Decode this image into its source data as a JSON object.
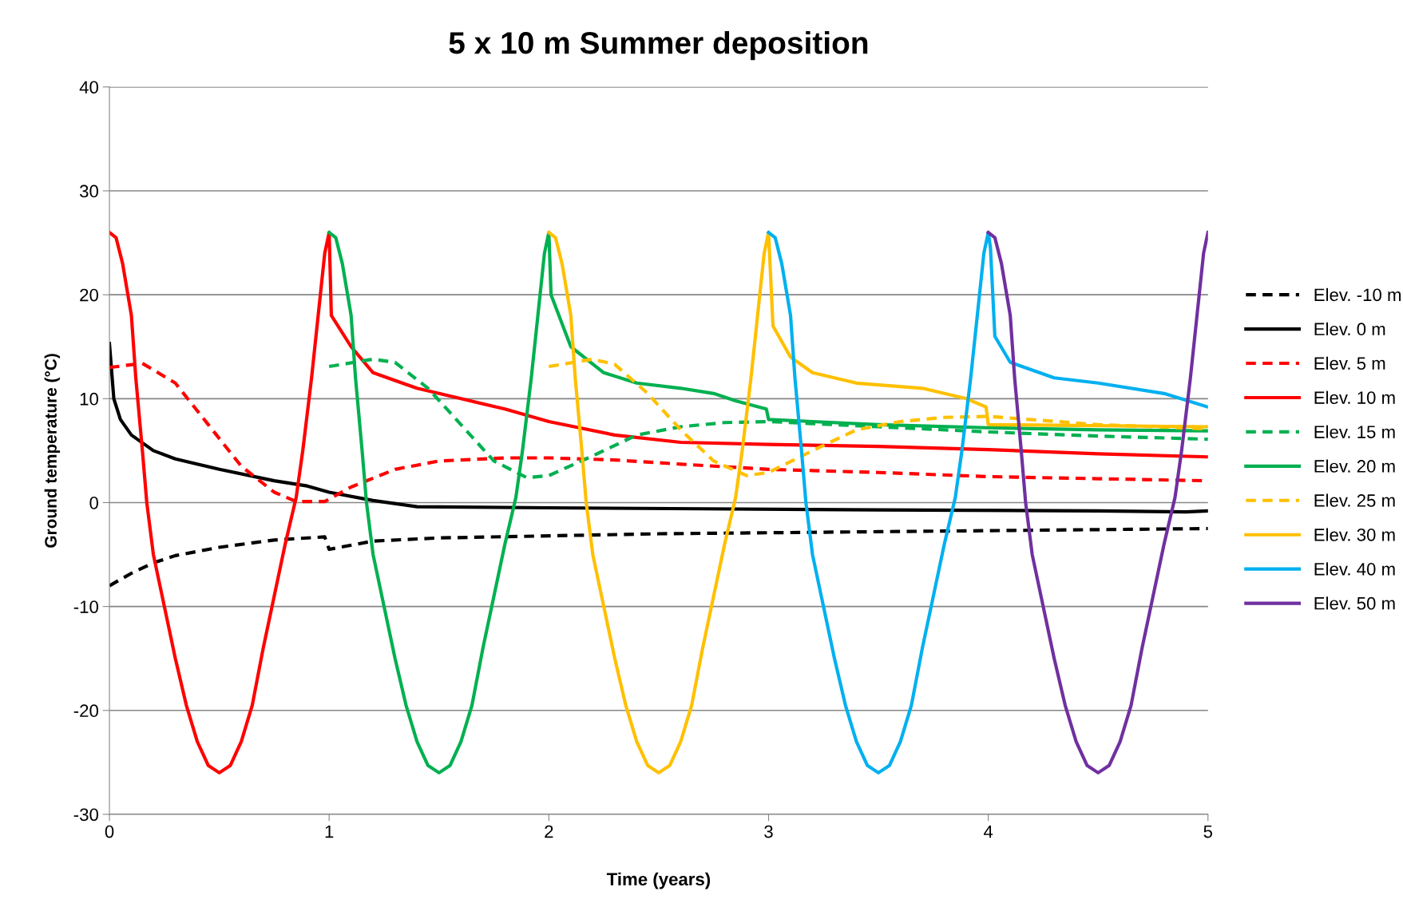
{
  "chart_data": {
    "type": "line",
    "title": "5 x 10 m Summer deposition",
    "xlabel": "Time (years)",
    "ylabel": "Ground temperature (°C)",
    "xlim": [
      0,
      5
    ],
    "ylim": [
      -30,
      40
    ],
    "xticks": [
      0,
      1,
      2,
      3,
      4,
      5
    ],
    "yticks": [
      -30,
      -20,
      -10,
      0,
      10,
      20,
      30,
      40
    ],
    "grid": "y",
    "legend": "right",
    "marker": "none",
    "series": [
      {
        "name": "Elev. -10 m",
        "color": "#000000",
        "line_style": "dashed",
        "x": [
          0,
          0.1,
          0.2,
          0.3,
          0.5,
          0.75,
          0.98,
          1.0,
          1.2,
          1.5,
          2,
          2.5,
          3,
          3.5,
          4,
          4.5,
          5
        ],
        "values": [
          -8,
          -6.8,
          -5.8,
          -5.1,
          -4.3,
          -3.6,
          -3.3,
          -4.5,
          -3.7,
          -3.4,
          -3.2,
          -3.0,
          -2.9,
          -2.8,
          -2.7,
          -2.6,
          -2.5
        ]
      },
      {
        "name": "Elev. 0 m",
        "color": "#000000",
        "line_style": "solid",
        "x": [
          0,
          0.02,
          0.05,
          0.1,
          0.2,
          0.3,
          0.5,
          0.75,
          0.9,
          1.0,
          1.2,
          1.4,
          2,
          2.7,
          3.5,
          4.5,
          4.9,
          5
        ],
        "values": [
          15.3,
          10,
          8,
          6.5,
          5,
          4.2,
          3.2,
          2.1,
          1.6,
          1.0,
          0.2,
          -0.4,
          -0.5,
          -0.6,
          -0.7,
          -0.8,
          -0.9,
          -0.8
        ]
      },
      {
        "name": "Elev. 5 m",
        "color": "#ff0000",
        "line_style": "dashed",
        "x": [
          0,
          0.15,
          0.3,
          0.45,
          0.6,
          0.75,
          0.85,
          0.98,
          1.1,
          1.3,
          1.5,
          1.8,
          2.0,
          2.3,
          2.6,
          3,
          3.5,
          4,
          4.5,
          5
        ],
        "values": [
          13,
          13.4,
          11.5,
          7.5,
          3.5,
          1,
          0.1,
          0.1,
          1.5,
          3.2,
          4.0,
          4.3,
          4.3,
          4.1,
          3.7,
          3.2,
          2.9,
          2.5,
          2.3,
          2.1
        ]
      },
      {
        "name": "Elev. 10 m",
        "color": "#ff0000",
        "line_style": "solid",
        "x": [
          0,
          0.03,
          0.06,
          0.1,
          0.12,
          0.15,
          0.17,
          0.2,
          0.25,
          0.3,
          0.35,
          0.4,
          0.45,
          0.5,
          0.55,
          0.6,
          0.65,
          0.7,
          0.75,
          0.8,
          0.85,
          0.88,
          0.92,
          0.95,
          0.98,
          1.0,
          1.01,
          1.1,
          1.2,
          1.4,
          1.6,
          1.8,
          2.0,
          2.3,
          2.6,
          3,
          3.5,
          4,
          4.5,
          5
        ],
        "values": [
          26,
          25.5,
          23,
          18,
          12,
          5,
          0,
          -5,
          -10,
          -15,
          -19.5,
          -23,
          -25.3,
          -26,
          -25.3,
          -23,
          -19.5,
          -14,
          -9,
          -4,
          0.5,
          5,
          12,
          18,
          24,
          26,
          18,
          15,
          12.5,
          11,
          10,
          9,
          7.8,
          6.5,
          5.8,
          5.6,
          5.4,
          5.1,
          4.7,
          4.4
        ]
      },
      {
        "name": "Elev. 15 m",
        "color": "#00b050",
        "line_style": "dashed",
        "x": [
          1.0,
          1.2,
          1.3,
          1.45,
          1.6,
          1.75,
          1.9,
          2.0,
          2.2,
          2.4,
          2.6,
          2.8,
          3.0,
          3.5,
          4,
          4.5,
          5
        ],
        "values": [
          13.1,
          13.8,
          13.5,
          11,
          7.5,
          4,
          2.4,
          2.6,
          4.5,
          6.5,
          7.3,
          7.7,
          7.8,
          7.3,
          6.8,
          6.4,
          6.1
        ]
      },
      {
        "name": "Elev. 20 m",
        "color": "#00b050",
        "line_style": "solid",
        "x": [
          1.0,
          1.03,
          1.06,
          1.1,
          1.12,
          1.15,
          1.17,
          1.2,
          1.25,
          1.3,
          1.35,
          1.4,
          1.45,
          1.5,
          1.55,
          1.6,
          1.65,
          1.7,
          1.75,
          1.8,
          1.85,
          1.88,
          1.92,
          1.95,
          1.98,
          2.0,
          2.01,
          2.1,
          2.25,
          2.4,
          2.6,
          2.75,
          2.85,
          2.99,
          3.0,
          3.2,
          3.5,
          4,
          4.5,
          5
        ],
        "values": [
          26,
          25.5,
          23,
          18,
          12,
          5,
          0,
          -5,
          -10,
          -15,
          -19.5,
          -23,
          -25.3,
          -26,
          -25.3,
          -23,
          -19.5,
          -14,
          -9,
          -4,
          0.5,
          5,
          12,
          18,
          24,
          26,
          20,
          15,
          12.5,
          11.5,
          11,
          10.5,
          9.8,
          9,
          8,
          7.8,
          7.5,
          7.2,
          7.0,
          6.9
        ]
      },
      {
        "name": "Elev. 25 m",
        "color": "#ffc000",
        "line_style": "dashed",
        "x": [
          2.0,
          2.2,
          2.3,
          2.45,
          2.6,
          2.75,
          2.9,
          3.0,
          3.2,
          3.4,
          3.6,
          3.8,
          4.0,
          4.5,
          5
        ],
        "values": [
          13.1,
          13.8,
          13.3,
          10.5,
          7,
          4,
          2.6,
          2.9,
          5,
          7,
          7.8,
          8.2,
          8.3,
          7.5,
          7.1
        ]
      },
      {
        "name": "Elev. 30 m",
        "color": "#ffc000",
        "line_style": "solid",
        "x": [
          2.0,
          2.03,
          2.06,
          2.1,
          2.12,
          2.15,
          2.17,
          2.2,
          2.25,
          2.3,
          2.35,
          2.4,
          2.45,
          2.5,
          2.55,
          2.6,
          2.65,
          2.7,
          2.75,
          2.8,
          2.85,
          2.88,
          2.92,
          2.95,
          2.98,
          3.0,
          3.02,
          3.1,
          3.2,
          3.4,
          3.7,
          3.9,
          3.99,
          4.0,
          5
        ],
        "values": [
          26,
          25.5,
          23,
          18,
          12,
          5,
          0,
          -5,
          -10,
          -15,
          -19.5,
          -23,
          -25.3,
          -26,
          -25.3,
          -23,
          -19.5,
          -14,
          -9,
          -4,
          0.5,
          5,
          12,
          18,
          24,
          26,
          17,
          14,
          12.5,
          11.5,
          11,
          10,
          9.2,
          7.5,
          7.3
        ]
      },
      {
        "name": "Elev. 40 m",
        "color": "#00b0f0",
        "line_style": "solid",
        "x": [
          3.0,
          3.03,
          3.06,
          3.1,
          3.12,
          3.15,
          3.17,
          3.2,
          3.25,
          3.3,
          3.35,
          3.4,
          3.45,
          3.5,
          3.55,
          3.6,
          3.65,
          3.7,
          3.75,
          3.8,
          3.85,
          3.88,
          3.92,
          3.95,
          3.98,
          4.0,
          4.01,
          4.03,
          4.1,
          4.3,
          4.5,
          4.8,
          5
        ],
        "values": [
          26,
          25.5,
          23,
          18,
          12,
          5,
          0,
          -5,
          -10,
          -15,
          -19.5,
          -23,
          -25.3,
          -26,
          -25.3,
          -23,
          -19.5,
          -14,
          -9,
          -4,
          0.5,
          5,
          12,
          18,
          24,
          26,
          24.5,
          16,
          13.5,
          12,
          11.5,
          10.5,
          9.2
        ]
      },
      {
        "name": "Elev. 50 m",
        "color": "#7030a0",
        "line_style": "solid",
        "x": [
          4.0,
          4.03,
          4.06,
          4.1,
          4.12,
          4.15,
          4.17,
          4.2,
          4.25,
          4.3,
          4.35,
          4.4,
          4.45,
          4.5,
          4.55,
          4.6,
          4.65,
          4.7,
          4.75,
          4.8,
          4.85,
          4.88,
          4.92,
          4.95,
          4.98,
          5.0
        ],
        "values": [
          26,
          25.5,
          23,
          18,
          12,
          5,
          0,
          -5,
          -10,
          -15,
          -19.5,
          -23,
          -25.3,
          -26,
          -25.3,
          -23,
          -19.5,
          -14,
          -9,
          -4,
          0.5,
          5,
          12,
          18,
          24,
          26
        ]
      }
    ]
  }
}
